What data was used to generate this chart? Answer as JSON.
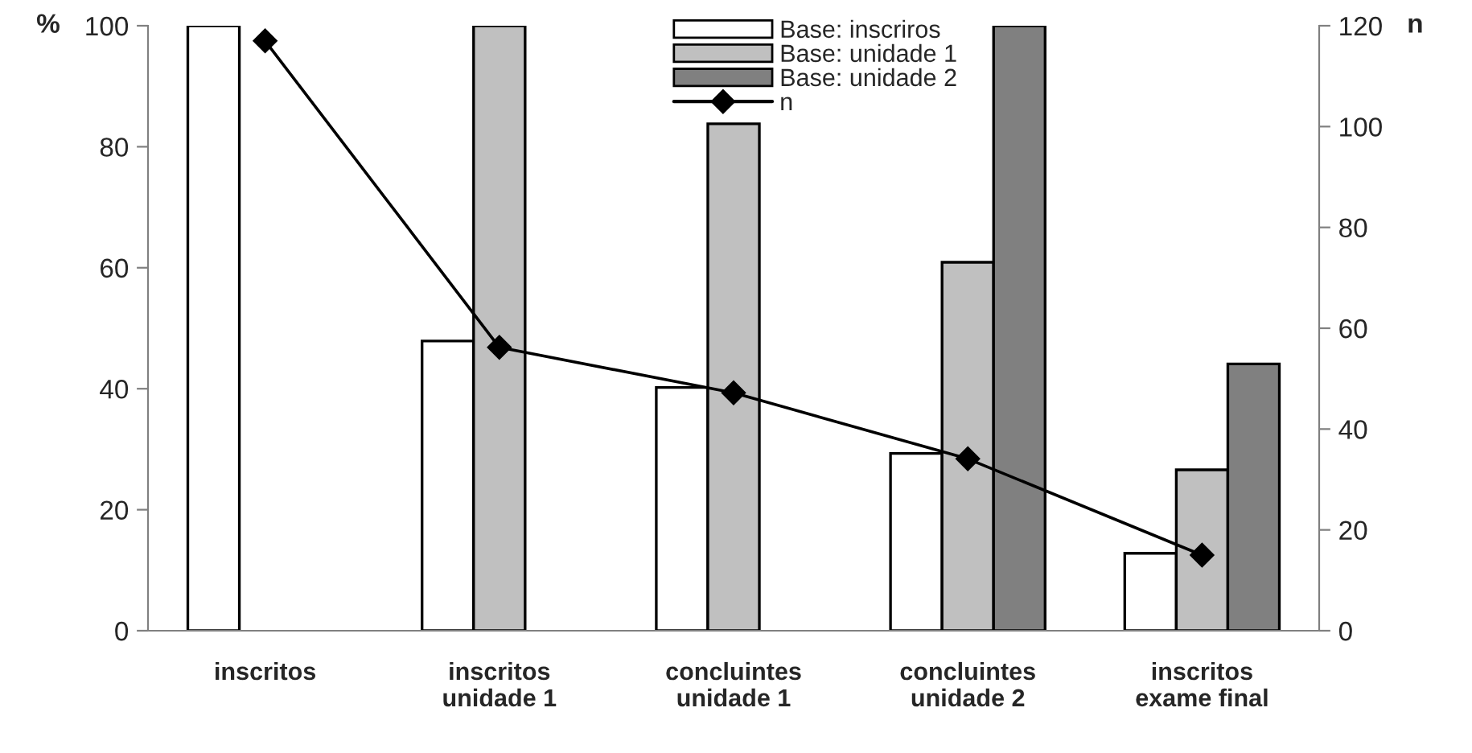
{
  "chart_data": {
    "type": "bar",
    "categories": [
      "inscritos",
      "inscritos\nunidade 1",
      "concluintes\nunidade 1",
      "concluintes\nunidade 2",
      "inscritos\nexame final"
    ],
    "ylabel": "%",
    "y2label": "n",
    "ylim": [
      0,
      100
    ],
    "yticks": [
      0,
      20,
      40,
      60,
      80,
      100
    ],
    "y2lim": [
      0,
      120
    ],
    "y2ticks": [
      0,
      20,
      40,
      60,
      80,
      100,
      120
    ],
    "series": [
      {
        "name": "Base: inscriros",
        "color": "#ffffff",
        "values": [
          100,
          47.9,
          40.2,
          29.3,
          12.8
        ]
      },
      {
        "name": "Base: unidade 1",
        "color": "#c0c0c0",
        "values": [
          null,
          100,
          83.8,
          60.9,
          26.6
        ]
      },
      {
        "name": "Base: unidade 2",
        "color": "#808080",
        "values": [
          null,
          null,
          null,
          100,
          44.1
        ]
      },
      {
        "name": "n",
        "type": "line",
        "axis": "y2",
        "color": "#000000",
        "marker": "diamond",
        "values": [
          117,
          56.2,
          47.2,
          34.1,
          15.0
        ]
      }
    ],
    "grid": false,
    "legend": "top"
  }
}
